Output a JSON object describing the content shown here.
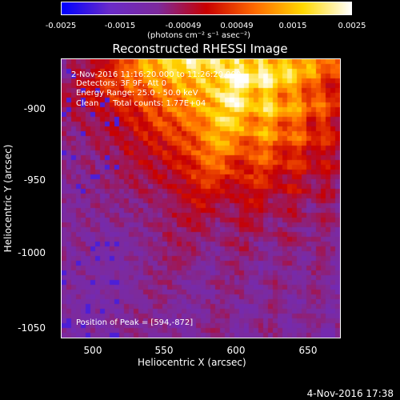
{
  "chart_data": {
    "type": "heatmap",
    "title": "Reconstructed RHESSI Image",
    "xlabel": "Heliocentric X (arcsec)",
    "ylabel": "Heliocentric Y (arcsec)",
    "xlim": [
      480,
      670
    ],
    "ylim": [
      -1060,
      -870
    ],
    "x_ticks": [
      "500",
      "550",
      "600",
      "650"
    ],
    "x_tick_values": [
      500,
      550,
      600,
      650
    ],
    "y_ticks": [
      "-900",
      "-950",
      "-1000",
      "-1050"
    ],
    "y_tick_values": [
      -900,
      -950,
      -1000,
      -1050
    ],
    "colorbar": {
      "range": [
        -0.0025,
        0.0025
      ],
      "tick_labels": [
        "-0.0025",
        "-0.0015",
        "-0.00049",
        "0.00049",
        "0.0015",
        "0.0025"
      ],
      "tick_values": [
        -0.0025,
        -0.0015,
        -0.00049,
        0.00049,
        0.0015,
        0.0025
      ],
      "units": "(photons cm⁻² s⁻¹ asec⁻²)",
      "colors": [
        "#0000ff",
        "#6a2bc8",
        "#7d2a9c",
        "#c80000",
        "#ff6a00",
        "#ffd800",
        "#ffffff"
      ]
    },
    "peak": {
      "x": 594,
      "y": -872
    },
    "annotations": {
      "time": "2-Nov-2016 11:16:20.000 to 11:26:20.000",
      "detectors": "Detectors: 3F 9F, Att 0",
      "energy": "Energy Range: 25.0 - 50.0 keV",
      "method": "Clean",
      "counts": "Total counts: 1.77E+04",
      "peak": "Position of Peak = [594,-872]"
    }
  },
  "footer": {
    "timestamp": "4-Nov-2016 17:38"
  }
}
